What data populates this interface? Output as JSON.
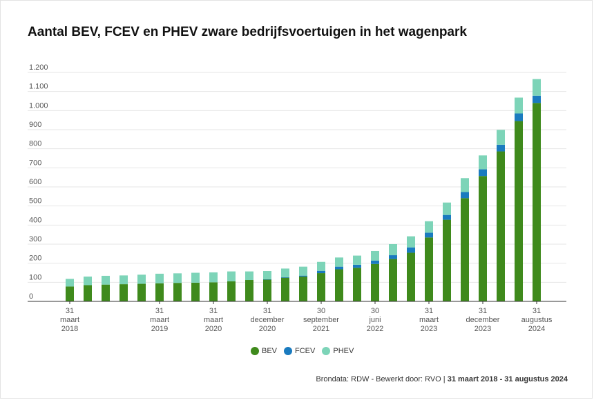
{
  "chart_data": {
    "type": "bar",
    "stacked": true,
    "title": "Aantal BEV, FCEV en PHEV zware bedrijfsvoertuigen in het wagenpark",
    "xlabel": "",
    "ylabel": "",
    "ylim": [
      0,
      1200
    ],
    "yticks": [
      {
        "value": 0,
        "label": "0"
      },
      {
        "value": 100,
        "label": "100"
      },
      {
        "value": 200,
        "label": "200"
      },
      {
        "value": 300,
        "label": "300"
      },
      {
        "value": 400,
        "label": "400"
      },
      {
        "value": 500,
        "label": "500"
      },
      {
        "value": 600,
        "label": "600"
      },
      {
        "value": 700,
        "label": "700"
      },
      {
        "value": 800,
        "label": "800"
      },
      {
        "value": 900,
        "label": "900"
      },
      {
        "value": 1000,
        "label": "1.000"
      },
      {
        "value": 1100,
        "label": "1.100"
      },
      {
        "value": 1200,
        "label": "1.200"
      }
    ],
    "grid": true,
    "legend_position": "bottom",
    "xticks": [
      {
        "index": 0,
        "lines": [
          "31",
          "maart",
          "2018"
        ]
      },
      {
        "index": 5,
        "lines": [
          "31",
          "maart",
          "2019"
        ]
      },
      {
        "index": 8,
        "lines": [
          "31",
          "maart",
          "2020"
        ]
      },
      {
        "index": 11,
        "lines": [
          "31",
          "december",
          "2020"
        ]
      },
      {
        "index": 14,
        "lines": [
          "30",
          "september",
          "2021"
        ]
      },
      {
        "index": 17,
        "lines": [
          "30",
          "juni",
          "2022"
        ]
      },
      {
        "index": 20,
        "lines": [
          "31",
          "maart",
          "2023"
        ]
      },
      {
        "index": 23,
        "lines": [
          "31",
          "december",
          "2023"
        ]
      },
      {
        "index": 26,
        "lines": [
          "31",
          "augustus",
          "2024"
        ]
      }
    ],
    "series": [
      {
        "name": "BEV",
        "color": "#3f8a1c",
        "values": [
          78,
          85,
          88,
          90,
          92,
          95,
          97,
          98,
          100,
          105,
          112,
          114,
          124,
          130,
          148,
          168,
          176,
          196,
          222,
          255,
          335,
          428,
          541,
          657,
          786,
          945,
          1040
        ]
      },
      {
        "name": "FCEV",
        "color": "#1a7bbf",
        "values": [
          0,
          0,
          0,
          0,
          0,
          0,
          0,
          0,
          0,
          0,
          0,
          2,
          3,
          5,
          12,
          14,
          16,
          18,
          20,
          28,
          25,
          25,
          32,
          35,
          35,
          40,
          38
        ]
      },
      {
        "name": "PHEV",
        "color": "#7dd4b8",
        "values": [
          40,
          45,
          46,
          46,
          48,
          50,
          50,
          52,
          52,
          52,
          45,
          43,
          45,
          47,
          47,
          48,
          48,
          50,
          58,
          58,
          60,
          65,
          73,
          73,
          78,
          83,
          87
        ]
      }
    ]
  },
  "legend": {
    "items": [
      {
        "label": "BEV",
        "color": "#3f8a1c"
      },
      {
        "label": "FCEV",
        "color": "#1a7bbf"
      },
      {
        "label": "PHEV",
        "color": "#7dd4b8"
      }
    ]
  },
  "source": {
    "text": "Brondata: RDW - Bewerkt door: RVO",
    "separator": " | ",
    "range": "31 maart 2018 - 31 augustus 2024"
  }
}
